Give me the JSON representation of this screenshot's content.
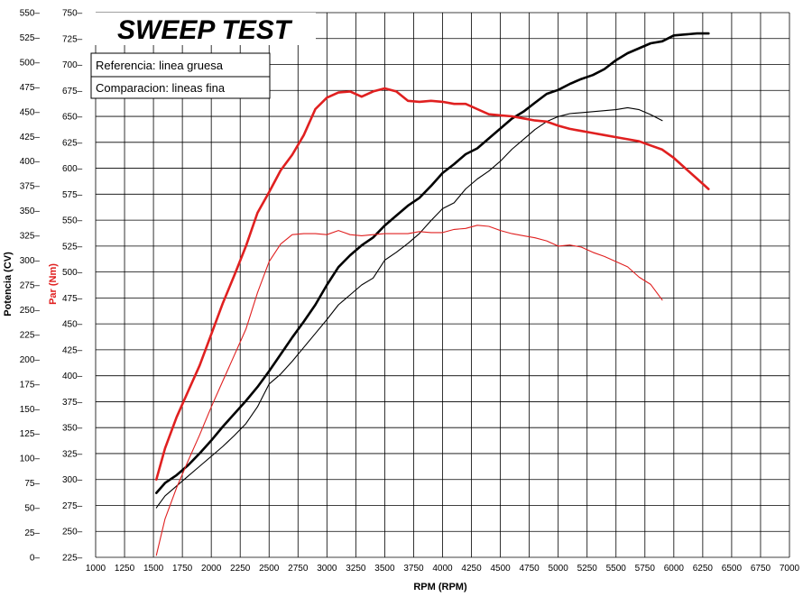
{
  "chart_data": {
    "type": "line",
    "title": "SWEEP TEST",
    "xlabel": "RPM (RPM)",
    "ylabel_left": "Potencia (CV)",
    "ylabel_right": "Par (Nm)",
    "xlim": [
      1000,
      7000
    ],
    "ylim_power": [
      0,
      550
    ],
    "ylim_torque": [
      225,
      750
    ],
    "x_ticks": [
      1000,
      1250,
      1500,
      1750,
      2000,
      2250,
      2500,
      2750,
      3000,
      3250,
      3500,
      3750,
      4000,
      4250,
      4500,
      4750,
      5000,
      5250,
      5500,
      5750,
      6000,
      6250,
      6500,
      6750,
      7000
    ],
    "power_ticks": [
      0,
      25,
      50,
      75,
      100,
      125,
      150,
      175,
      200,
      225,
      250,
      275,
      300,
      325,
      350,
      375,
      400,
      425,
      450,
      475,
      500,
      525,
      550
    ],
    "torque_ticks": [
      225,
      250,
      275,
      300,
      325,
      350,
      375,
      400,
      425,
      450,
      475,
      500,
      525,
      550,
      575,
      600,
      625,
      650,
      675,
      700,
      725,
      750
    ],
    "grid": true,
    "legend": {
      "placement": "top-left",
      "entries": [
        "Referencia: linea gruesa",
        "Comparacion: lineas fina"
      ]
    },
    "colors": {
      "power": "#000000",
      "torque": "#e02020"
    },
    "series": [
      {
        "axis": "power",
        "weight": "thick",
        "color": "#000000",
        "x": [
          1525,
          1600,
          1700,
          1800,
          1900,
          2000,
          2100,
          2200,
          2300,
          2400,
          2500,
          2600,
          2700,
          2800,
          2900,
          3000,
          3100,
          3200,
          3300,
          3400,
          3500,
          3600,
          3700,
          3800,
          3900,
          4000,
          4100,
          4200,
          4300,
          4400,
          4500,
          4600,
          4700,
          4800,
          4900,
          5000,
          5100,
          5200,
          5300,
          5400,
          5500,
          5600,
          5700,
          5800,
          5900,
          6000,
          6100,
          6200,
          6300
        ],
        "y": [
          65,
          75,
          83,
          93,
          105,
          118,
          132,
          145,
          158,
          172,
          188,
          205,
          222,
          238,
          255,
          275,
          293,
          305,
          315,
          323,
          335,
          345,
          355,
          363,
          375,
          388,
          397,
          407,
          413,
          423,
          433,
          443,
          450,
          459,
          468,
          472,
          478,
          483,
          487,
          493,
          502,
          509,
          514,
          519,
          521,
          527,
          528,
          529,
          529
        ]
      },
      {
        "axis": "power",
        "weight": "thin",
        "color": "#000000",
        "x": [
          1525,
          1600,
          1700,
          1800,
          1900,
          2000,
          2100,
          2200,
          2300,
          2400,
          2500,
          2600,
          2700,
          2800,
          2900,
          3000,
          3100,
          3200,
          3300,
          3400,
          3500,
          3600,
          3700,
          3800,
          3900,
          4000,
          4100,
          4200,
          4300,
          4400,
          4500,
          4600,
          4700,
          4800,
          4900,
          5000,
          5100,
          5200,
          5300,
          5400,
          5500,
          5600,
          5700,
          5800,
          5900
        ],
        "y": [
          50,
          62,
          72,
          82,
          92,
          102,
          112,
          123,
          135,
          152,
          175,
          185,
          198,
          212,
          226,
          240,
          255,
          265,
          275,
          282,
          300,
          308,
          317,
          327,
          340,
          352,
          358,
          372,
          382,
          390,
          400,
          412,
          422,
          432,
          440,
          445,
          448,
          449,
          450,
          451,
          452,
          454,
          452,
          447,
          441
        ]
      },
      {
        "axis": "torque",
        "weight": "thick",
        "color": "#e02020",
        "x": [
          1525,
          1600,
          1700,
          1800,
          1900,
          2000,
          2100,
          2200,
          2300,
          2400,
          2500,
          2600,
          2700,
          2800,
          2900,
          3000,
          3100,
          3200,
          3300,
          3400,
          3500,
          3600,
          3700,
          3800,
          3900,
          4000,
          4100,
          4200,
          4300,
          4400,
          4500,
          4600,
          4700,
          4800,
          4900,
          5000,
          5100,
          5200,
          5300,
          5400,
          5500,
          5600,
          5700,
          5800,
          5900,
          6000,
          6100,
          6200,
          6300
        ],
        "y": [
          300,
          330,
          360,
          385,
          410,
          440,
          470,
          497,
          525,
          557,
          577,
          598,
          613,
          632,
          657,
          668,
          673,
          674,
          669,
          674,
          677,
          674,
          665,
          664,
          665,
          664,
          662,
          662,
          657,
          652,
          651,
          650,
          648,
          646,
          645,
          641,
          638,
          636,
          634,
          632,
          630,
          628,
          626,
          622,
          618,
          610,
          600,
          590,
          580
        ]
      },
      {
        "axis": "torque",
        "weight": "thin",
        "color": "#e02020",
        "x": [
          1525,
          1600,
          1700,
          1800,
          1900,
          2000,
          2100,
          2200,
          2300,
          2400,
          2500,
          2600,
          2700,
          2800,
          2900,
          3000,
          3100,
          3200,
          3300,
          3400,
          3500,
          3600,
          3700,
          3800,
          3900,
          4000,
          4100,
          4200,
          4300,
          4400,
          4500,
          4600,
          4700,
          4800,
          4900,
          5000,
          5100,
          5200,
          5300,
          5400,
          5500,
          5600,
          5700,
          5800,
          5900
        ],
        "y": [
          227,
          262,
          292,
          318,
          343,
          370,
          395,
          420,
          445,
          480,
          510,
          527,
          536,
          537,
          537,
          536,
          540,
          536,
          535,
          536,
          537,
          537,
          537,
          539,
          538,
          538,
          541,
          542,
          545,
          544,
          540,
          537,
          535,
          533,
          530,
          525,
          526,
          524,
          519,
          515,
          510,
          505,
          495,
          488,
          473
        ]
      }
    ]
  }
}
